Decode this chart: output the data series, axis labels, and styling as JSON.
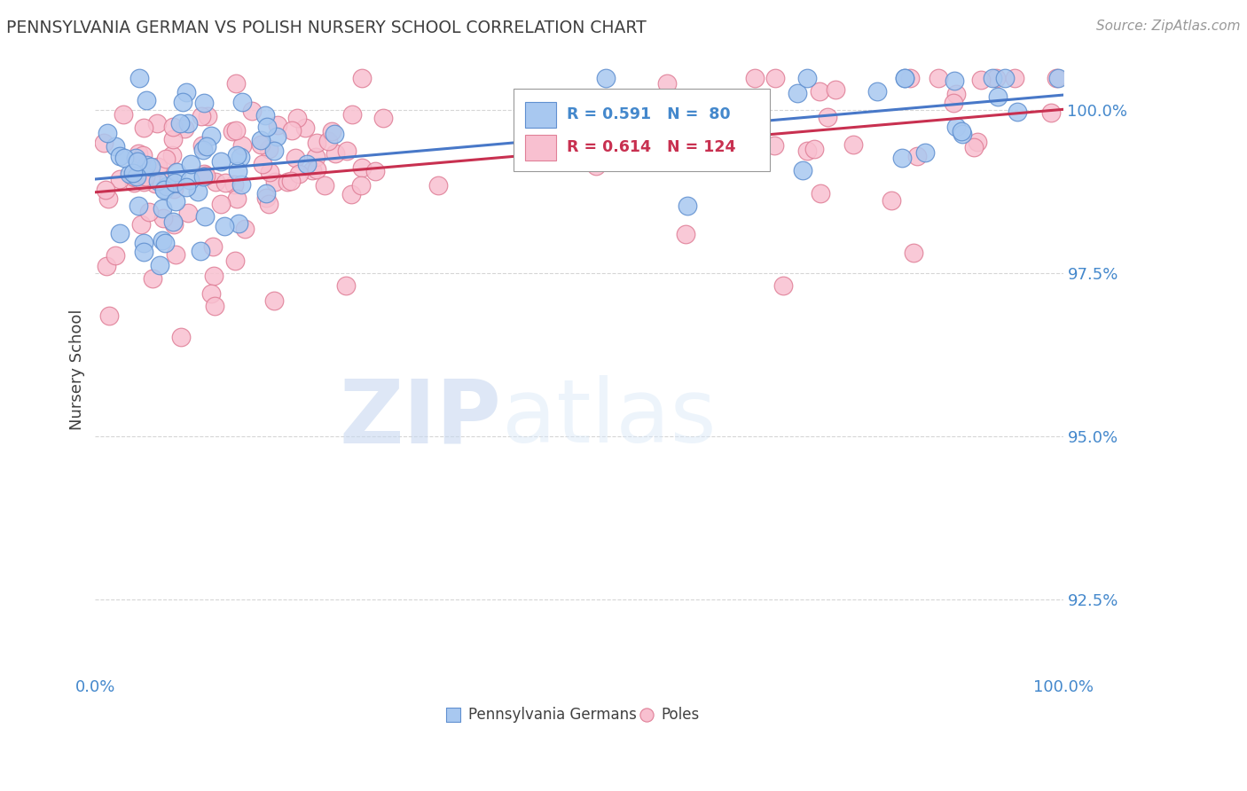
{
  "title": "PENNSYLVANIA GERMAN VS POLISH NURSERY SCHOOL CORRELATION CHART",
  "source_text": "Source: ZipAtlas.com",
  "ylabel": "Nursery School",
  "watermark_zip": "ZIP",
  "watermark_atlas": "atlas",
  "x_min": 0.0,
  "x_max": 1.0,
  "y_min": 0.9135,
  "y_max": 1.007,
  "yticks": [
    0.925,
    0.95,
    0.975,
    1.0
  ],
  "ytick_labels": [
    "92.5%",
    "95.0%",
    "97.5%",
    "100.0%"
  ],
  "xticks": [
    0.0,
    0.5,
    1.0
  ],
  "xtick_labels": [
    "0.0%",
    "",
    "100.0%"
  ],
  "pg_color": "#a8c8f0",
  "pg_edge_color": "#6090d0",
  "poles_color": "#f8c0d0",
  "poles_edge_color": "#e08098",
  "trend_pg_color": "#4878c8",
  "trend_poles_color": "#c83050",
  "background_color": "#ffffff",
  "grid_color": "#cccccc",
  "title_color": "#404040",
  "tick_label_color": "#4488cc",
  "R_pg": 0.591,
  "N_pg": 80,
  "R_poles": 0.614,
  "N_poles": 124,
  "legend_label_pg": "Pennsylvania Germans",
  "legend_label_poles": "Poles"
}
